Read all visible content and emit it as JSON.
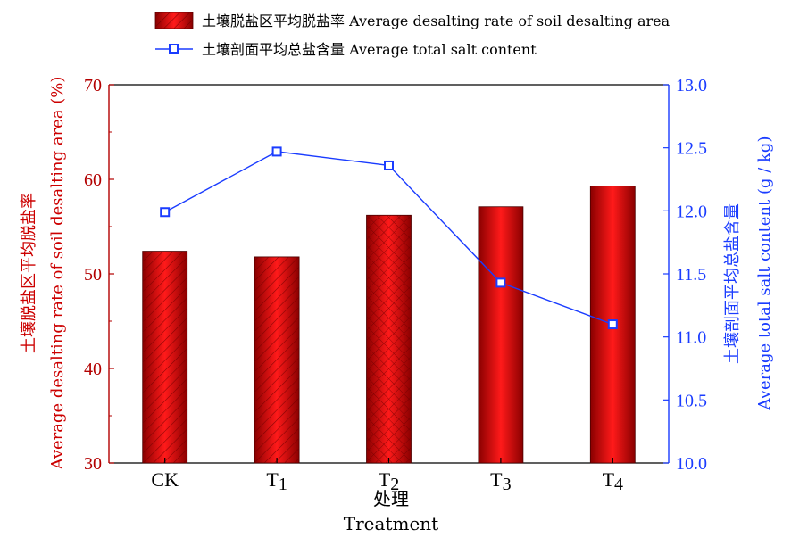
{
  "chart_data": {
    "type": "bar+line",
    "categories": [
      {
        "main": "CK",
        "sub": ""
      },
      {
        "main": "T",
        "sub": "1"
      },
      {
        "main": "T",
        "sub": "2"
      },
      {
        "main": "T",
        "sub": "3"
      },
      {
        "main": "T",
        "sub": "4"
      }
    ],
    "bar_series": {
      "name": "土壤脱盐区平均脱盐率  Average desalting rate of soil desalting area",
      "values": [
        52.4,
        51.8,
        56.2,
        57.1,
        59.3
      ],
      "axis": "left",
      "color": "#cc0000",
      "patterns": [
        "diag",
        "diag",
        "cross",
        "none",
        "none"
      ]
    },
    "line_series": {
      "name": "土壤剖面平均总盐含量  Average total salt content",
      "values": [
        11.99,
        12.47,
        12.36,
        11.43,
        11.1
      ],
      "axis": "right",
      "color": "#1a3cff",
      "marker": "square"
    },
    "y_left": {
      "label_cn": "土壤脱盐区平均脱盐率",
      "label_en": "Average desalting rate of soil desalting area (%)",
      "lim": [
        30,
        70
      ],
      "ticks": [
        "30",
        "40",
        "50",
        "60",
        "70"
      ]
    },
    "y_right": {
      "label_cn": "土壤剖面平均总盐含量",
      "label_en": "Average total salt content (g / kg)",
      "lim": [
        10.0,
        13.0
      ],
      "ticks": [
        "10.0",
        "10.5",
        "11.0",
        "11.5",
        "12.0",
        "12.5",
        "13.0"
      ]
    },
    "x_axis": {
      "label_cn": "处理",
      "label_en": "Treatment"
    },
    "legend_position": "top",
    "grid": false
  }
}
